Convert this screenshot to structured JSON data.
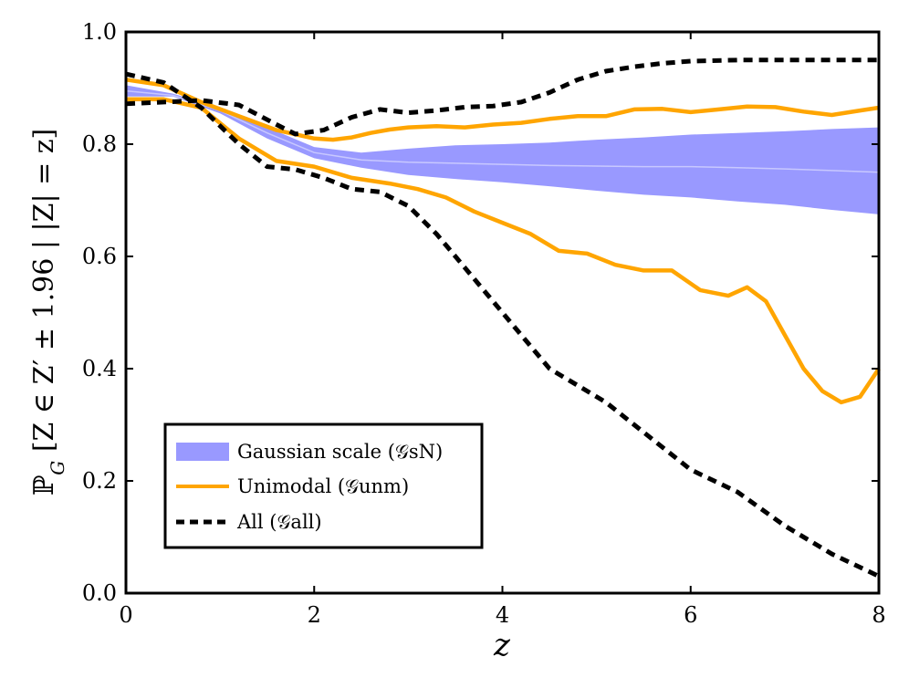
{
  "chart_data": {
    "type": "line",
    "xlabel": "z",
    "ylabel": "ℙG [Z ∈ Z′ ± 1.96 | |Z| = z]",
    "xlim": [
      0,
      8
    ],
    "ylim": [
      0.0,
      1.0
    ],
    "x_ticks": [
      "0",
      "2",
      "4",
      "6",
      "8"
    ],
    "y_ticks": [
      "0.0",
      "0.2",
      "0.4",
      "0.6",
      "0.8",
      "1.0"
    ],
    "grid": false,
    "legend_position": "bottom-left",
    "colors": {
      "gaussian_fill": "#9999ff",
      "gaussian_mid": "#c8c8ff",
      "unimodal": "#ffa500",
      "all": "#000000"
    },
    "series": [
      {
        "name": "Gaussian scale (𝒢sN)",
        "kind": "band",
        "x": [
          0,
          0.5,
          1.0,
          1.5,
          2.0,
          2.5,
          3.0,
          3.5,
          4.0,
          4.5,
          5.0,
          5.5,
          6.0,
          6.5,
          7.0,
          7.5,
          8.0
        ],
        "lower": [
          0.885,
          0.885,
          0.855,
          0.81,
          0.775,
          0.758,
          0.745,
          0.738,
          0.732,
          0.725,
          0.717,
          0.71,
          0.705,
          0.698,
          0.692,
          0.683,
          0.675
        ],
        "upper": [
          0.905,
          0.89,
          0.865,
          0.83,
          0.795,
          0.785,
          0.792,
          0.798,
          0.8,
          0.803,
          0.808,
          0.812,
          0.817,
          0.82,
          0.823,
          0.827,
          0.83
        ],
        "mid": [
          0.895,
          0.887,
          0.86,
          0.82,
          0.785,
          0.772,
          0.768,
          0.766,
          0.764,
          0.762,
          0.761,
          0.76,
          0.76,
          0.758,
          0.756,
          0.753,
          0.75
        ]
      },
      {
        "name": "Unimodal (𝒢unm)",
        "kind": "pair",
        "upper": {
          "x": [
            0,
            0.4,
            0.8,
            1.2,
            1.6,
            2.0,
            2.2,
            2.4,
            2.6,
            2.8,
            3.0,
            3.3,
            3.6,
            3.9,
            4.2,
            4.5,
            4.8,
            5.1,
            5.4,
            5.7,
            6.0,
            6.3,
            6.6,
            6.9,
            7.2,
            7.5,
            7.8,
            8.0
          ],
          "y": [
            0.915,
            0.905,
            0.875,
            0.85,
            0.825,
            0.81,
            0.808,
            0.812,
            0.82,
            0.826,
            0.83,
            0.832,
            0.83,
            0.835,
            0.838,
            0.845,
            0.85,
            0.85,
            0.862,
            0.863,
            0.857,
            0.862,
            0.867,
            0.866,
            0.858,
            0.852,
            0.86,
            0.865
          ]
        },
        "lower": {
          "x": [
            0,
            0.4,
            0.8,
            1.2,
            1.6,
            2.0,
            2.4,
            2.8,
            3.1,
            3.4,
            3.7,
            4.0,
            4.3,
            4.6,
            4.9,
            5.2,
            5.5,
            5.8,
            6.1,
            6.4,
            6.6,
            6.8,
            7.0,
            7.2,
            7.4,
            7.6,
            7.8,
            8.0
          ],
          "y": [
            0.88,
            0.88,
            0.865,
            0.81,
            0.77,
            0.76,
            0.74,
            0.73,
            0.72,
            0.705,
            0.68,
            0.66,
            0.64,
            0.61,
            0.605,
            0.585,
            0.575,
            0.575,
            0.54,
            0.53,
            0.545,
            0.52,
            0.46,
            0.4,
            0.36,
            0.34,
            0.35,
            0.4
          ]
        }
      },
      {
        "name": "All (𝒢all)",
        "kind": "pair",
        "upper": {
          "x": [
            0,
            0.4,
            0.8,
            1.2,
            1.6,
            1.8,
            2.1,
            2.4,
            2.7,
            3.0,
            3.3,
            3.6,
            3.9,
            4.2,
            4.5,
            4.8,
            5.1,
            5.4,
            5.7,
            6.0,
            6.5,
            7.0,
            7.5,
            8.0
          ],
          "y": [
            0.872,
            0.875,
            0.878,
            0.87,
            0.835,
            0.818,
            0.825,
            0.848,
            0.862,
            0.856,
            0.86,
            0.866,
            0.868,
            0.875,
            0.892,
            0.915,
            0.93,
            0.938,
            0.944,
            0.948,
            0.95,
            0.95,
            0.95,
            0.95
          ]
        },
        "lower": {
          "x": [
            0,
            0.4,
            0.8,
            1.2,
            1.5,
            1.8,
            2.1,
            2.4,
            2.7,
            3.0,
            3.3,
            3.6,
            3.9,
            4.2,
            4.5,
            4.8,
            5.1,
            5.4,
            5.7,
            6.0,
            6.5,
            7.0,
            7.5,
            8.0
          ],
          "y": [
            0.925,
            0.91,
            0.865,
            0.8,
            0.76,
            0.755,
            0.74,
            0.72,
            0.715,
            0.69,
            0.64,
            0.58,
            0.52,
            0.46,
            0.4,
            0.37,
            0.34,
            0.3,
            0.26,
            0.22,
            0.18,
            0.12,
            0.07,
            0.03
          ]
        }
      }
    ]
  }
}
